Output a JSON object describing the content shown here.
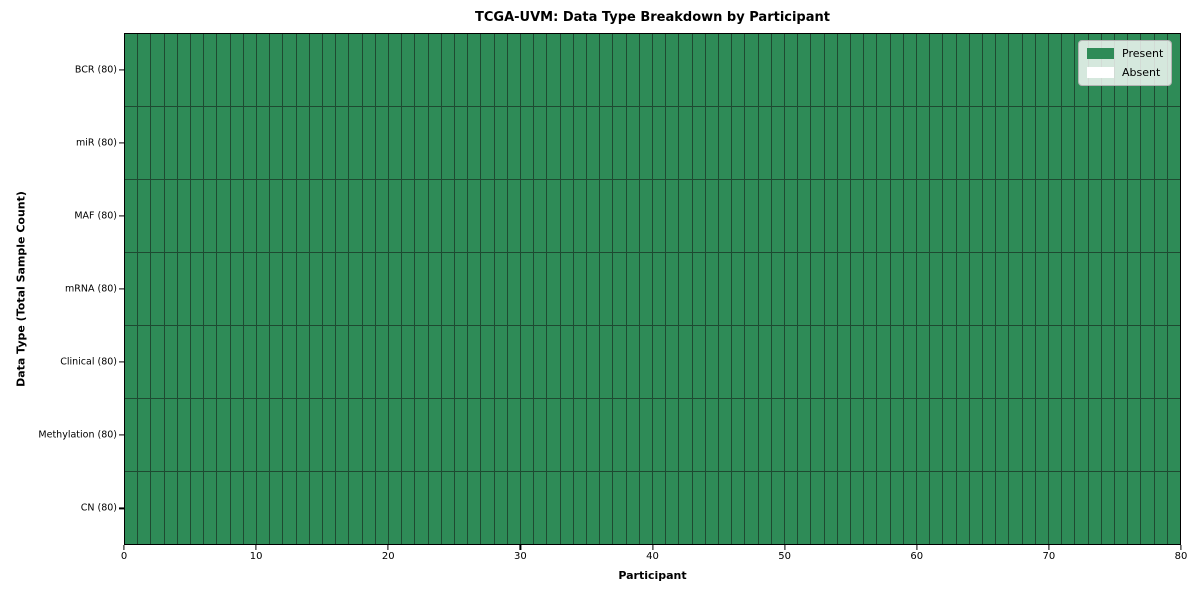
{
  "figure": {
    "title": "TCGA-UVM: Data Type Breakdown by Participant",
    "xlabel": "Participant",
    "ylabel": "Data Type (Total Sample Count)"
  },
  "colors": {
    "present": "#2e8b57",
    "absent": "#ffffff",
    "cell_border": "#1e4a31",
    "axis_spine": "#000000",
    "legend_border": "#b3b3b3"
  },
  "legend": {
    "position": "upper right",
    "items": [
      {
        "label": "Present",
        "color": "#2e8b57"
      },
      {
        "label": "Absent",
        "color": "#ffffff"
      }
    ]
  },
  "chart_data": {
    "type": "heatmap",
    "title": "TCGA-UVM: Data Type Breakdown by Participant",
    "xlabel": "Participant",
    "ylabel": "Data Type (Total Sample Count)",
    "x_range": [
      0,
      80
    ],
    "x_ticks": [
      0,
      10,
      20,
      30,
      40,
      50,
      60,
      70,
      80
    ],
    "n_participants": 80,
    "categories": [
      "BCR (80)",
      "miR (80)",
      "MAF (80)",
      "mRNA (80)",
      "Clinical (80)",
      "Methylation (80)",
      "CN (80)"
    ],
    "series": [
      {
        "name": "BCR (80)",
        "present_count": 80,
        "absent_count": 0
      },
      {
        "name": "miR (80)",
        "present_count": 80,
        "absent_count": 0
      },
      {
        "name": "MAF (80)",
        "present_count": 80,
        "absent_count": 0
      },
      {
        "name": "mRNA (80)",
        "present_count": 80,
        "absent_count": 0
      },
      {
        "name": "Clinical (80)",
        "present_count": 80,
        "absent_count": 0
      },
      {
        "name": "Methylation (80)",
        "present_count": 80,
        "absent_count": 0
      },
      {
        "name": "CN (80)",
        "present_count": 80,
        "absent_count": 0
      }
    ],
    "value_legend": {
      "present": 1,
      "absent": 0
    },
    "legend_entries": [
      "Present",
      "Absent"
    ],
    "legend_position": "upper right",
    "grid": true
  }
}
